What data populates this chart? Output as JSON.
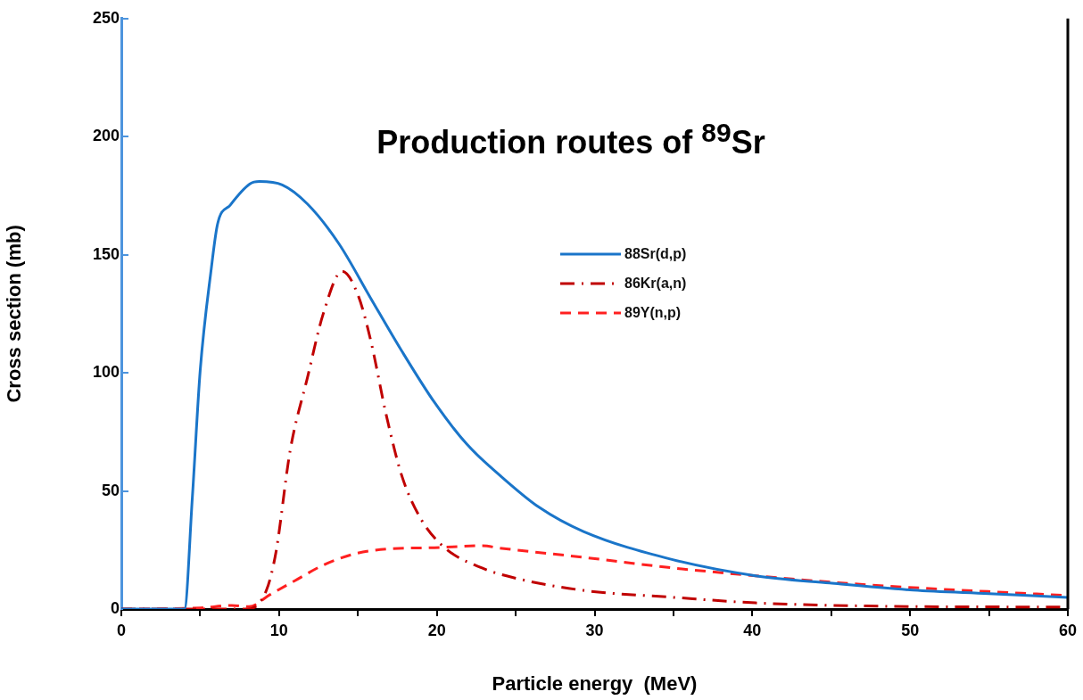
{
  "chart_data": {
    "type": "line",
    "title": "Production routes of $^{89}$Sr",
    "xlabel": "Particle energy  (MeV)",
    "ylabel": "Cross section (mb)",
    "xlim": [
      0,
      60
    ],
    "ylim": [
      0,
      250
    ],
    "xticks": [
      0,
      {
        "value": 5,
        "label": null
      },
      10,
      {
        "value": 15,
        "label": null
      },
      20,
      {
        "value": 25,
        "label": null
      },
      30,
      {
        "value": 35,
        "label": null
      },
      40,
      {
        "value": 45,
        "label": null
      },
      50,
      {
        "value": 55,
        "label": null
      },
      60
    ],
    "yticks": [
      0,
      50,
      100,
      150,
      200,
      250
    ],
    "grid": false,
    "legend": "top",
    "marker": "none",
    "series": [
      {
        "name": "88Sr(d,p)",
        "color": "#1a75c9",
        "line_style": "solid",
        "x": [
          0,
          4,
          4.5,
          5,
          5.7,
          6.1,
          6.9,
          8.15,
          8.75,
          10.2,
          11.8,
          13.8,
          15.8,
          17.8,
          19.85,
          21.9,
          24,
          26.5,
          29.3,
          34.9,
          40.2,
          44.9,
          50.2,
          55,
          60
        ],
        "values": [
          0,
          0,
          47,
          101,
          144,
          163,
          171,
          180,
          181,
          179.6,
          171.5,
          154.6,
          131.7,
          109,
          87.5,
          69.8,
          56.6,
          43,
          32.8,
          21,
          14.1,
          11,
          8,
          6.5,
          4.9
        ]
      },
      {
        "name": "86Kr(a,n)",
        "color": "#c00000",
        "line_style": "dashdot",
        "x": [
          0,
          8,
          9.2,
          9.8,
          10.7,
          11.8,
          12.8,
          14,
          15,
          15.8,
          16.8,
          17.8,
          19.05,
          20.6,
          22.9,
          24.9,
          29.3,
          35.1,
          40.2,
          47.2,
          60
        ],
        "values": [
          0,
          0,
          8,
          24,
          67,
          98,
          125,
          143,
          133,
          114,
          82,
          56,
          37.5,
          25.4,
          17.3,
          13.2,
          7.9,
          4.9,
          2.6,
          1.3,
          0.8
        ]
      },
      {
        "name": "89Y(n,p)",
        "color": "#ff2020",
        "line_style": "dashed",
        "x": [
          0,
          5,
          7,
          8.1,
          9.4,
          11,
          12.8,
          14.8,
          16.8,
          19.85,
          22.9,
          24,
          29.3,
          35.1,
          40.2,
          47.2,
          60
        ],
        "values": [
          0,
          0.5,
          1.5,
          1,
          6,
          12,
          18.6,
          23.4,
          25.4,
          26,
          26.8,
          25.8,
          21.9,
          17.3,
          14.1,
          10.3,
          5.7
        ]
      }
    ]
  }
}
